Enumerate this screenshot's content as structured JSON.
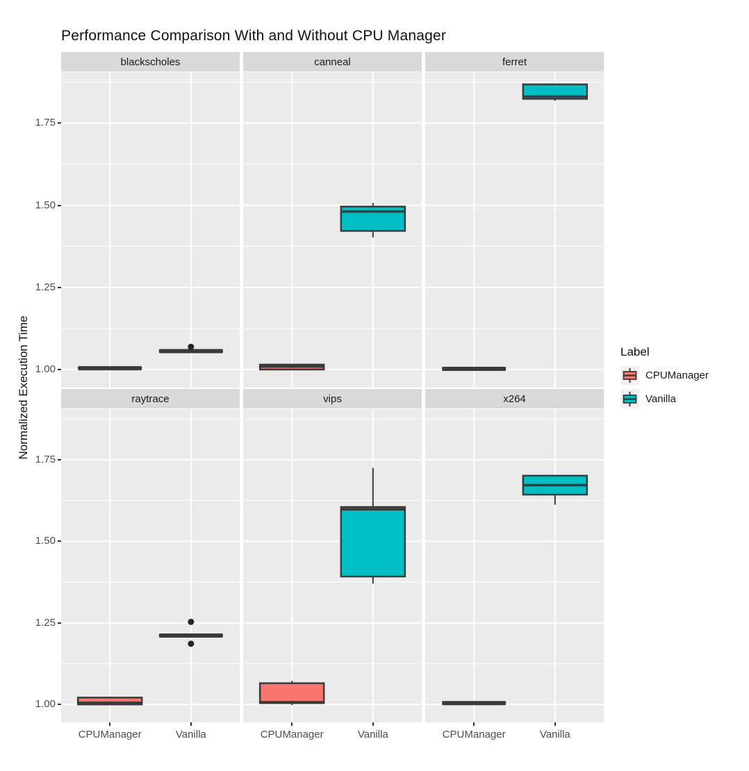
{
  "title": "Performance Comparison With and Without CPU Manager",
  "y_axis": {
    "title": "Normalized Execution Time",
    "domain": [
      0.945,
      1.905
    ],
    "ticks": [
      {
        "label": "1.00",
        "value": 1.0
      },
      {
        "label": "1.25",
        "value": 1.25
      },
      {
        "label": "1.50",
        "value": 1.5
      },
      {
        "label": "1.75",
        "value": 1.75
      }
    ],
    "minor_gridlines": [
      1.125,
      1.375,
      1.625,
      1.875
    ]
  },
  "x_axis": {
    "categories": [
      "CPUManager",
      "Vanilla"
    ]
  },
  "legend": {
    "title": "Label",
    "entries": [
      {
        "label": "CPUManager",
        "color": "#F8766D"
      },
      {
        "label": "Vanilla",
        "color": "#00BFC4"
      }
    ]
  },
  "colors": {
    "panel_bg": "#EBEBEB",
    "strip_bg": "#D9D9D9",
    "gridline": "#FFFFFF",
    "box_edge": "#3A3A3A",
    "outlier": "#262626",
    "cpumanager_fill": "#F8766D",
    "vanilla_fill": "#00BFC4"
  },
  "chart_data": {
    "type": "boxplot-facets",
    "facet_rows": 2,
    "facet_cols": 3,
    "facets": [
      {
        "name": "blackscholes",
        "groups": [
          {
            "label": "CPUManager",
            "color": "#F8766D",
            "flat": true,
            "value": 1.004,
            "outliers": []
          },
          {
            "label": "Vanilla",
            "color": "#00BFC4",
            "flat": true,
            "value": 1.056,
            "outliers": [
              1.069
            ]
          }
        ]
      },
      {
        "name": "canneal",
        "groups": [
          {
            "label": "CPUManager",
            "color": "#F8766D",
            "flat": false,
            "stats": {
              "low": 1.0,
              "q1": 1.0,
              "med": 1.009,
              "q3": 1.015,
              "high": 1.015
            },
            "outliers": []
          },
          {
            "label": "Vanilla",
            "color": "#00BFC4",
            "flat": false,
            "stats": {
              "low": 1.402,
              "q1": 1.422,
              "med": 1.481,
              "q3": 1.496,
              "high": 1.507
            },
            "outliers": []
          }
        ]
      },
      {
        "name": "ferret",
        "groups": [
          {
            "label": "CPUManager",
            "color": "#F8766D",
            "flat": true,
            "value": 1.002,
            "outliers": []
          },
          {
            "label": "Vanilla",
            "color": "#00BFC4",
            "flat": false,
            "stats": {
              "low": 1.818,
              "q1": 1.824,
              "med": 1.831,
              "q3": 1.868,
              "high": 1.868
            },
            "outliers": []
          }
        ]
      },
      {
        "name": "raytrace",
        "groups": [
          {
            "label": "CPUManager",
            "color": "#F8766D",
            "flat": false,
            "stats": {
              "low": 1.0,
              "q1": 1.0,
              "med": 1.005,
              "q3": 1.021,
              "high": 1.021
            },
            "outliers": []
          },
          {
            "label": "Vanilla",
            "color": "#00BFC4",
            "flat": true,
            "value": 1.211,
            "outliers": [
              1.253,
              1.186
            ]
          }
        ]
      },
      {
        "name": "vips",
        "groups": [
          {
            "label": "CPUManager",
            "color": "#F8766D",
            "flat": false,
            "stats": {
              "low": 0.998,
              "q1": 1.004,
              "med": 1.007,
              "q3": 1.065,
              "high": 1.072
            },
            "outliers": []
          },
          {
            "label": "Vanilla",
            "color": "#00BFC4",
            "flat": false,
            "stats": {
              "low": 1.37,
              "q1": 1.392,
              "med": 1.598,
              "q3": 1.605,
              "high": 1.725
            },
            "outliers": []
          }
        ]
      },
      {
        "name": "x264",
        "groups": [
          {
            "label": "CPUManager",
            "color": "#F8766D",
            "flat": true,
            "value": 1.004,
            "outliers": []
          },
          {
            "label": "Vanilla",
            "color": "#00BFC4",
            "flat": false,
            "stats": {
              "low": 1.612,
              "q1": 1.643,
              "med": 1.672,
              "q3": 1.701,
              "high": 1.701
            },
            "outliers": []
          }
        ]
      }
    ]
  }
}
